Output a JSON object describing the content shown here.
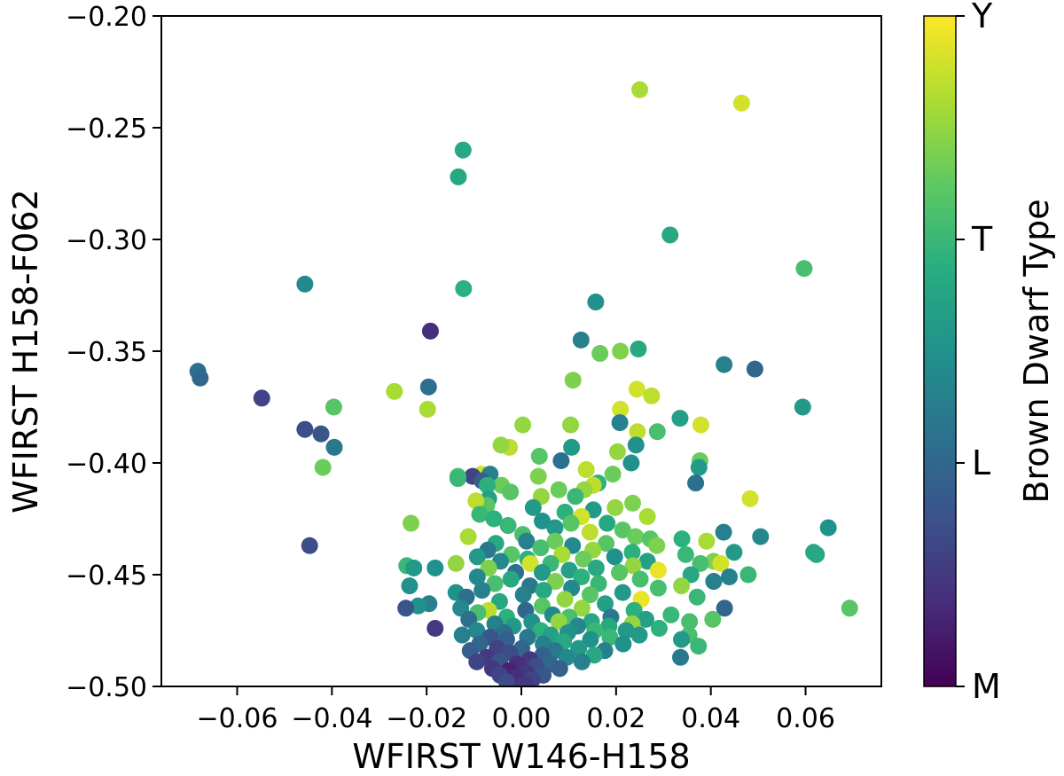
{
  "chart_data": {
    "type": "scatter",
    "xlabel": "WFIRST W146-H158",
    "ylabel": "WFIRST H158-F062",
    "xlim": [
      -0.076,
      0.076
    ],
    "ylim": [
      -0.5,
      -0.2
    ],
    "xticks": [
      -0.06,
      -0.04,
      -0.02,
      0.0,
      0.02,
      0.04,
      0.06
    ],
    "xtick_labels": [
      "−0.06",
      "−0.04",
      "−0.02",
      "0.00",
      "0.02",
      "0.04",
      "0.06"
    ],
    "yticks": [
      -0.2,
      -0.25,
      -0.3,
      -0.35,
      -0.4,
      -0.45,
      -0.5
    ],
    "ytick_labels": [
      "−0.20",
      "−0.25",
      "−0.30",
      "−0.35",
      "−0.40",
      "−0.45",
      "−0.50"
    ],
    "grid": false,
    "colorbar": {
      "label": "Brown Dwarf Type",
      "colormap": "viridis",
      "ticks": [
        {
          "value": 0,
          "label": "M"
        },
        {
          "value": 1,
          "label": "L"
        },
        {
          "value": 2,
          "label": "T"
        },
        {
          "value": 3,
          "label": "Y"
        }
      ],
      "range": [
        0,
        3
      ]
    },
    "points": [
      {
        "x": 0.025,
        "y": -0.233,
        "c": 2.6
      },
      {
        "x": 0.0465,
        "y": -0.239,
        "c": 2.8
      },
      {
        "x": -0.0123,
        "y": -0.26,
        "c": 1.8
      },
      {
        "x": -0.0133,
        "y": -0.272,
        "c": 1.8
      },
      {
        "x": 0.0314,
        "y": -0.298,
        "c": 1.8
      },
      {
        "x": 0.0597,
        "y": -0.313,
        "c": 2.1
      },
      {
        "x": -0.0457,
        "y": -0.32,
        "c": 1.4
      },
      {
        "x": -0.0122,
        "y": -0.322,
        "c": 1.9
      },
      {
        "x": 0.0157,
        "y": -0.328,
        "c": 1.5
      },
      {
        "x": -0.0192,
        "y": -0.341,
        "c": 0.4
      },
      {
        "x": 0.0126,
        "y": -0.345,
        "c": 1.3
      },
      {
        "x": 0.0166,
        "y": -0.351,
        "c": 2.3
      },
      {
        "x": 0.0209,
        "y": -0.35,
        "c": 2.4
      },
      {
        "x": 0.0247,
        "y": -0.349,
        "c": 1.8
      },
      {
        "x": 0.0428,
        "y": -0.356,
        "c": 1.3
      },
      {
        "x": 0.0493,
        "y": -0.358,
        "c": 1.0
      },
      {
        "x": -0.0683,
        "y": -0.359,
        "c": 1.1
      },
      {
        "x": -0.0678,
        "y": -0.362,
        "c": 1.0
      },
      {
        "x": 0.0109,
        "y": -0.363,
        "c": 2.4
      },
      {
        "x": 0.0244,
        "y": -0.367,
        "c": 2.8
      },
      {
        "x": -0.0268,
        "y": -0.368,
        "c": 2.6
      },
      {
        "x": -0.0196,
        "y": -0.366,
        "c": 1.1
      },
      {
        "x": 0.0275,
        "y": -0.37,
        "c": 2.7
      },
      {
        "x": -0.0548,
        "y": -0.371,
        "c": 0.6
      },
      {
        "x": -0.0396,
        "y": -0.375,
        "c": 2.2
      },
      {
        "x": 0.0594,
        "y": -0.375,
        "c": 1.6
      },
      {
        "x": -0.0198,
        "y": -0.376,
        "c": 2.6
      },
      {
        "x": 0.0209,
        "y": -0.376,
        "c": 2.8
      },
      {
        "x": 0.0335,
        "y": -0.38,
        "c": 1.7
      },
      {
        "x": 0.0208,
        "y": -0.382,
        "c": 1.3
      },
      {
        "x": 0.0379,
        "y": -0.383,
        "c": 2.8
      },
      {
        "x": 0.0003,
        "y": -0.383,
        "c": 2.5
      },
      {
        "x": 0.0104,
        "y": -0.383,
        "c": 2.5
      },
      {
        "x": -0.0457,
        "y": -0.385,
        "c": 0.7
      },
      {
        "x": -0.0423,
        "y": -0.387,
        "c": 0.8
      },
      {
        "x": 0.0245,
        "y": -0.386,
        "c": 2.7
      },
      {
        "x": 0.0287,
        "y": -0.386,
        "c": 2.1
      },
      {
        "x": 0.0242,
        "y": -0.392,
        "c": 1.5
      },
      {
        "x": -0.0025,
        "y": -0.393,
        "c": 2.7
      },
      {
        "x": -0.0043,
        "y": -0.392,
        "c": 2.5
      },
      {
        "x": -0.0395,
        "y": -0.393,
        "c": 1.2
      },
      {
        "x": 0.0106,
        "y": -0.393,
        "c": 1.6
      },
      {
        "x": 0.0203,
        "y": -0.395,
        "c": 2.5
      },
      {
        "x": 0.0038,
        "y": -0.397,
        "c": 2.2
      },
      {
        "x": 0.0084,
        "y": -0.399,
        "c": 1.1
      },
      {
        "x": 0.0377,
        "y": -0.399,
        "c": 2.3
      },
      {
        "x": 0.0232,
        "y": -0.4,
        "c": 1.5
      },
      {
        "x": 0.0375,
        "y": -0.402,
        "c": 1.6
      },
      {
        "x": -0.0419,
        "y": -0.402,
        "c": 2.3
      },
      {
        "x": 0.0137,
        "y": -0.403,
        "c": 2.7
      },
      {
        "x": -0.0084,
        "y": -0.405,
        "c": 2.8
      },
      {
        "x": -0.0103,
        "y": -0.406,
        "c": 0.6
      },
      {
        "x": -0.0134,
        "y": -0.406,
        "c": 2.1
      },
      {
        "x": -0.0134,
        "y": -0.407,
        "c": 2.0
      },
      {
        "x": 0.0193,
        "y": -0.405,
        "c": 2.3
      },
      {
        "x": -0.0066,
        "y": -0.405,
        "c": 1.3
      },
      {
        "x": 0.0036,
        "y": -0.406,
        "c": 2.4
      },
      {
        "x": -0.0083,
        "y": -0.408,
        "c": 0.9
      },
      {
        "x": -0.0042,
        "y": -0.41,
        "c": 2.3
      },
      {
        "x": 0.0368,
        "y": -0.409,
        "c": 1.1
      },
      {
        "x": 0.0162,
        "y": -0.409,
        "c": 1.9
      },
      {
        "x": 0.0152,
        "y": -0.41,
        "c": 2.7
      },
      {
        "x": -0.0072,
        "y": -0.41,
        "c": 1.9
      },
      {
        "x": 0.0133,
        "y": -0.412,
        "c": 2.5
      },
      {
        "x": 0.0079,
        "y": -0.412,
        "c": 2.3
      },
      {
        "x": -0.0023,
        "y": -0.413,
        "c": 2.2
      },
      {
        "x": 0.0042,
        "y": -0.415,
        "c": 2.5
      },
      {
        "x": 0.0114,
        "y": -0.415,
        "c": 2.0
      },
      {
        "x": 0.0483,
        "y": -0.416,
        "c": 2.8
      },
      {
        "x": -0.0069,
        "y": -0.416,
        "c": 1.7
      },
      {
        "x": 0.0235,
        "y": -0.418,
        "c": 2.4
      },
      {
        "x": -0.0073,
        "y": -0.419,
        "c": 2.2
      },
      {
        "x": -0.0096,
        "y": -0.417,
        "c": 2.7
      },
      {
        "x": 0.0025,
        "y": -0.42,
        "c": 1.6
      },
      {
        "x": 0.0198,
        "y": -0.42,
        "c": 2.5
      },
      {
        "x": 0.0152,
        "y": -0.421,
        "c": 1.6
      },
      {
        "x": 0.0092,
        "y": -0.422,
        "c": 1.9
      },
      {
        "x": -0.0088,
        "y": -0.423,
        "c": 2.0
      },
      {
        "x": 0.0127,
        "y": -0.424,
        "c": 2.8
      },
      {
        "x": 0.0266,
        "y": -0.424,
        "c": 2.6
      },
      {
        "x": -0.0058,
        "y": -0.425,
        "c": 1.9
      },
      {
        "x": 0.0044,
        "y": -0.426,
        "c": 1.5
      },
      {
        "x": 0.0105,
        "y": -0.427,
        "c": 2.2
      },
      {
        "x": -0.0233,
        "y": -0.427,
        "c": 2.4
      },
      {
        "x": 0.0181,
        "y": -0.427,
        "c": 1.8
      },
      {
        "x": -0.0028,
        "y": -0.428,
        "c": 2.0
      },
      {
        "x": 0.0071,
        "y": -0.429,
        "c": 1.6
      },
      {
        "x": 0.0214,
        "y": -0.43,
        "c": 2.2
      },
      {
        "x": 0.0427,
        "y": -0.431,
        "c": 1.3
      },
      {
        "x": 0.0145,
        "y": -0.431,
        "c": 2.7
      },
      {
        "x": 0.0003,
        "y": -0.432,
        "c": 2.1
      },
      {
        "x": -0.0112,
        "y": -0.433,
        "c": 2.6
      },
      {
        "x": 0.0648,
        "y": -0.429,
        "c": 1.5
      },
      {
        "x": 0.0505,
        "y": -0.433,
        "c": 1.4
      },
      {
        "x": 0.0241,
        "y": -0.433,
        "c": 2.3
      },
      {
        "x": 0.0339,
        "y": -0.434,
        "c": 1.9
      },
      {
        "x": 0.0272,
        "y": -0.434,
        "c": 2.2
      },
      {
        "x": 0.0071,
        "y": -0.435,
        "c": 2.3
      },
      {
        "x": 0.0391,
        "y": -0.435,
        "c": 2.6
      },
      {
        "x": 0.0011,
        "y": -0.435,
        "c": 1.3
      },
      {
        "x": -0.0054,
        "y": -0.436,
        "c": 1.8
      },
      {
        "x": 0.0179,
        "y": -0.436,
        "c": 2.2
      },
      {
        "x": -0.0447,
        "y": -0.437,
        "c": 0.7
      },
      {
        "x": 0.0108,
        "y": -0.437,
        "c": 1.4
      },
      {
        "x": 0.0286,
        "y": -0.437,
        "c": 2.4
      },
      {
        "x": 0.0041,
        "y": -0.438,
        "c": 2.1
      },
      {
        "x": -0.0071,
        "y": -0.439,
        "c": 1.2
      },
      {
        "x": 0.0151,
        "y": -0.439,
        "c": 2.5
      },
      {
        "x": 0.0617,
        "y": -0.44,
        "c": 1.8
      },
      {
        "x": 0.0449,
        "y": -0.44,
        "c": 1.6
      },
      {
        "x": 0.0234,
        "y": -0.44,
        "c": 1.9
      },
      {
        "x": -0.0021,
        "y": -0.441,
        "c": 2.2
      },
      {
        "x": 0.0347,
        "y": -0.441,
        "c": 2.0
      },
      {
        "x": 0.0086,
        "y": -0.441,
        "c": 2.6
      },
      {
        "x": 0.0623,
        "y": -0.441,
        "c": 1.8
      },
      {
        "x": -0.0093,
        "y": -0.442,
        "c": 1.6
      },
      {
        "x": 0.0197,
        "y": -0.442,
        "c": 1.5
      },
      {
        "x": 0.0013,
        "y": -0.443,
        "c": 1.9
      },
      {
        "x": 0.0131,
        "y": -0.443,
        "c": 2.3
      },
      {
        "x": -0.0044,
        "y": -0.444,
        "c": 1.4
      },
      {
        "x": 0.0266,
        "y": -0.444,
        "c": 1.7
      },
      {
        "x": 0.0406,
        "y": -0.444,
        "c": 2.4
      },
      {
        "x": 0.0062,
        "y": -0.445,
        "c": 2.0
      },
      {
        "x": 0.0421,
        "y": -0.445,
        "c": 2.8
      },
      {
        "x": -0.0138,
        "y": -0.445,
        "c": 2.5
      },
      {
        "x": 0.0378,
        "y": -0.445,
        "c": 2.1
      },
      {
        "x": 0.0019,
        "y": -0.445,
        "c": 2.8
      },
      {
        "x": 0.0236,
        "y": -0.446,
        "c": 2.5
      },
      {
        "x": -0.0242,
        "y": -0.446,
        "c": 2.0
      },
      {
        "x": -0.0227,
        "y": -0.447,
        "c": 1.6
      },
      {
        "x": -0.0182,
        "y": -0.447,
        "c": 1.5
      },
      {
        "x": -0.0069,
        "y": -0.447,
        "c": 2.4
      },
      {
        "x": 0.0158,
        "y": -0.447,
        "c": 1.8
      },
      {
        "x": 0.0101,
        "y": -0.448,
        "c": 1.7
      },
      {
        "x": 0.0289,
        "y": -0.448,
        "c": 2.9
      },
      {
        "x": -0.0012,
        "y": -0.449,
        "c": 1.1
      },
      {
        "x": 0.0044,
        "y": -0.449,
        "c": 1.6
      },
      {
        "x": 0.0207,
        "y": -0.449,
        "c": 2.2
      },
      {
        "x": 0.0358,
        "y": -0.45,
        "c": 1.8
      },
      {
        "x": 0.0479,
        "y": -0.45,
        "c": 2.0
      },
      {
        "x": 0.0439,
        "y": -0.451,
        "c": 1.3
      },
      {
        "x": -0.0093,
        "y": -0.451,
        "c": 1.4
      },
      {
        "x": 0.0127,
        "y": -0.451,
        "c": 1.9
      },
      {
        "x": -0.0022,
        "y": -0.452,
        "c": 1.8
      },
      {
        "x": 0.0251,
        "y": -0.452,
        "c": 2.1
      },
      {
        "x": 0.0072,
        "y": -0.453,
        "c": 2.4
      },
      {
        "x": 0.0406,
        "y": -0.453,
        "c": 1.3
      },
      {
        "x": -0.0056,
        "y": -0.454,
        "c": 2.1
      },
      {
        "x": 0.0163,
        "y": -0.454,
        "c": 2.0
      },
      {
        "x": 0.0018,
        "y": -0.455,
        "c": 1.2
      },
      {
        "x": -0.0236,
        "y": -0.455,
        "c": 1.5
      },
      {
        "x": 0.0338,
        "y": -0.455,
        "c": 2.5
      },
      {
        "x": 0.0106,
        "y": -0.456,
        "c": 1.4
      },
      {
        "x": 0.0289,
        "y": -0.456,
        "c": 2.1
      },
      {
        "x": -0.0083,
        "y": -0.457,
        "c": 1.3
      },
      {
        "x": 0.0047,
        "y": -0.457,
        "c": 1.8
      },
      {
        "x": 0.0214,
        "y": -0.458,
        "c": 1.6
      },
      {
        "x": -0.0138,
        "y": -0.458,
        "c": 1.5
      },
      {
        "x": 0.0145,
        "y": -0.459,
        "c": 2.2
      },
      {
        "x": 0.0004,
        "y": -0.459,
        "c": 1.3
      },
      {
        "x": -0.0116,
        "y": -0.46,
        "c": 1.1
      },
      {
        "x": 0.0371,
        "y": -0.46,
        "c": 2.0
      },
      {
        "x": 0.0253,
        "y": -0.461,
        "c": 2.9
      },
      {
        "x": 0.0092,
        "y": -0.461,
        "c": 2.5
      },
      {
        "x": -0.0046,
        "y": -0.462,
        "c": 1.8
      },
      {
        "x": -0.0195,
        "y": -0.463,
        "c": 1.3
      },
      {
        "x": 0.0177,
        "y": -0.463,
        "c": 1.7
      },
      {
        "x": -0.0218,
        "y": -0.464,
        "c": 1.5
      },
      {
        "x": 0.0044,
        "y": -0.464,
        "c": 2.2
      },
      {
        "x": 0.0429,
        "y": -0.465,
        "c": 1.0
      },
      {
        "x": -0.0244,
        "y": -0.465,
        "c": 0.8
      },
      {
        "x": -0.0128,
        "y": -0.465,
        "c": 1.4
      },
      {
        "x": 0.0128,
        "y": -0.465,
        "c": 2.5
      },
      {
        "x": 0.0693,
        "y": -0.465,
        "c": 2.2
      },
      {
        "x": -0.0069,
        "y": -0.466,
        "c": 2.7
      },
      {
        "x": 0.0009,
        "y": -0.466,
        "c": 1.0
      },
      {
        "x": 0.0238,
        "y": -0.466,
        "c": 1.9
      },
      {
        "x": -0.0092,
        "y": -0.467,
        "c": 2.1
      },
      {
        "x": 0.0066,
        "y": -0.468,
        "c": 1.4
      },
      {
        "x": 0.0316,
        "y": -0.468,
        "c": 2.0
      },
      {
        "x": 0.0189,
        "y": -0.469,
        "c": 1.2
      },
      {
        "x": -0.0031,
        "y": -0.469,
        "c": 1.9
      },
      {
        "x": 0.0101,
        "y": -0.469,
        "c": 2.1
      },
      {
        "x": 0.0263,
        "y": -0.47,
        "c": 1.7
      },
      {
        "x": -0.0111,
        "y": -0.47,
        "c": 1.1
      },
      {
        "x": 0.0404,
        "y": -0.47,
        "c": 2.2
      },
      {
        "x": 0.0022,
        "y": -0.471,
        "c": 1.5
      },
      {
        "x": 0.0148,
        "y": -0.471,
        "c": 1.8
      },
      {
        "x": 0.0079,
        "y": -0.471,
        "c": 2.5
      },
      {
        "x": 0.0355,
        "y": -0.471,
        "c": 2.1
      },
      {
        "x": -0.0056,
        "y": -0.472,
        "c": 1.3
      },
      {
        "x": 0.0234,
        "y": -0.472,
        "c": 2.5
      },
      {
        "x": 0.0185,
        "y": -0.473,
        "c": 1.8
      },
      {
        "x": -0.0017,
        "y": -0.473,
        "c": 1.6
      },
      {
        "x": 0.0119,
        "y": -0.473,
        "c": 1.4
      },
      {
        "x": -0.0182,
        "y": -0.474,
        "c": 0.5
      },
      {
        "x": 0.0291,
        "y": -0.474,
        "c": 1.9
      },
      {
        "x": 0.0041,
        "y": -0.475,
        "c": 1.9
      },
      {
        "x": -0.0094,
        "y": -0.475,
        "c": 1.4
      },
      {
        "x": 0.0221,
        "y": -0.475,
        "c": 1.6
      },
      {
        "x": 0.0155,
        "y": -0.475,
        "c": 2.0
      },
      {
        "x": -0.0036,
        "y": -0.476,
        "c": 1.1
      },
      {
        "x": 0.0098,
        "y": -0.476,
        "c": 1.5
      },
      {
        "x": 0.0354,
        "y": -0.477,
        "c": 2.1
      },
      {
        "x": -0.0125,
        "y": -0.477,
        "c": 1.3
      },
      {
        "x": 0.0062,
        "y": -0.477,
        "c": 1.7
      },
      {
        "x": 0.0249,
        "y": -0.477,
        "c": 1.6
      },
      {
        "x": -0.0066,
        "y": -0.478,
        "c": 0.8
      },
      {
        "x": 0.0187,
        "y": -0.478,
        "c": 2.0
      },
      {
        "x": 0.0013,
        "y": -0.478,
        "c": 1.2
      },
      {
        "x": 0.0146,
        "y": -0.479,
        "c": 1.5
      },
      {
        "x": -0.0031,
        "y": -0.479,
        "c": 0.9
      },
      {
        "x": 0.0338,
        "y": -0.479,
        "c": 1.6
      },
      {
        "x": 0.0089,
        "y": -0.48,
        "c": 1.8
      },
      {
        "x": -0.0088,
        "y": -0.481,
        "c": 1.0
      },
      {
        "x": 0.0215,
        "y": -0.481,
        "c": 1.5
      },
      {
        "x": 0.0046,
        "y": -0.481,
        "c": 1.3
      },
      {
        "x": 0.0374,
        "y": -0.482,
        "c": 2.0
      },
      {
        "x": -0.0051,
        "y": -0.483,
        "c": 0.6
      },
      {
        "x": 0.0121,
        "y": -0.483,
        "c": 1.6
      },
      {
        "x": 0.0001,
        "y": -0.483,
        "c": 1.0
      },
      {
        "x": 0.0176,
        "y": -0.484,
        "c": 1.3
      },
      {
        "x": -0.0108,
        "y": -0.484,
        "c": 0.9
      },
      {
        "x": 0.0071,
        "y": -0.484,
        "c": 1.2
      },
      {
        "x": -0.0024,
        "y": -0.485,
        "c": 0.7
      },
      {
        "x": 0.0154,
        "y": -0.486,
        "c": 1.8
      },
      {
        "x": 0.0045,
        "y": -0.486,
        "c": 0.9
      },
      {
        "x": -0.0073,
        "y": -0.487,
        "c": 0.5
      },
      {
        "x": 0.0336,
        "y": -0.487,
        "c": 1.2
      },
      {
        "x": 0.0096,
        "y": -0.487,
        "c": 1.4
      },
      {
        "x": 0.0018,
        "y": -0.488,
        "c": 0.5
      },
      {
        "x": -0.0046,
        "y": -0.489,
        "c": 0.8
      },
      {
        "x": 0.0128,
        "y": -0.489,
        "c": 1.3
      },
      {
        "x": -0.0094,
        "y": -0.489,
        "c": 0.6
      },
      {
        "x": 0.0061,
        "y": -0.49,
        "c": 1.0
      },
      {
        "x": -0.0009,
        "y": -0.49,
        "c": 0.4
      },
      {
        "x": 0.0031,
        "y": -0.491,
        "c": 0.7
      },
      {
        "x": -0.0061,
        "y": -0.492,
        "c": 0.5
      },
      {
        "x": 0.0081,
        "y": -0.492,
        "c": 0.9
      },
      {
        "x": -0.0027,
        "y": -0.493,
        "c": 0.3
      },
      {
        "x": 0.0011,
        "y": -0.494,
        "c": 0.5
      },
      {
        "x": -0.0045,
        "y": -0.495,
        "c": 0.6
      },
      {
        "x": 0.0046,
        "y": -0.495,
        "c": 0.8
      },
      {
        "x": -0.0012,
        "y": -0.496,
        "c": 0.4
      },
      {
        "x": 0.0023,
        "y": -0.497,
        "c": 0.6
      },
      {
        "x": -0.0031,
        "y": -0.498,
        "c": 0.7
      },
      {
        "x": 0.0008,
        "y": -0.499,
        "c": 0.5
      }
    ]
  }
}
